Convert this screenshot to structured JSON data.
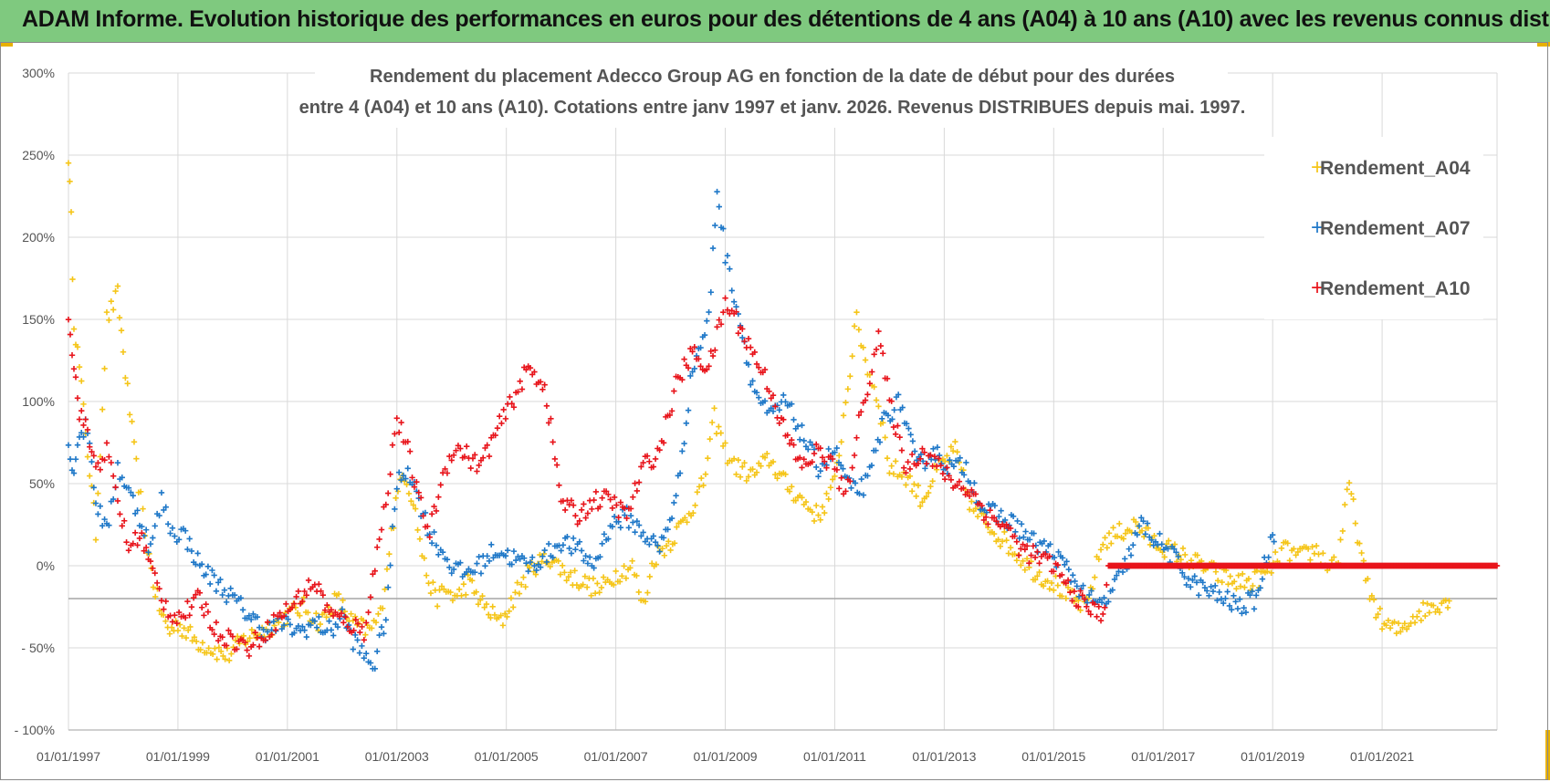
{
  "banner": {
    "title": "ADAM Informe. Evolution historique des performances en euros pour des détentions de 4 ans (A04) à 10 ans (A10) avec les revenus connus distribués"
  },
  "colors": {
    "banner_bg": "#7fc97f",
    "A04": "#f5c518",
    "A07": "#1f78c8",
    "A10": "#e8141b",
    "grid": "#d9d9d9",
    "ref_line": "#a6a6a6"
  },
  "chart_data": {
    "type": "scatter",
    "title": [
      "Rendement du placement Adecco Group AG en fonction de la date de début pour des durées",
      "entre 4 (A04) et 10 ans (A10).  Cotations entre janv 1997 et janv. 2026. Revenus DISTRIBUES depuis mai. 1997."
    ],
    "xlabel": "",
    "ylabel": "",
    "x_range": [
      1997.0,
      2023.1
    ],
    "ylim": [
      -100,
      300
    ],
    "x_tick_years": [
      1997,
      1999,
      2001,
      2003,
      2005,
      2007,
      2009,
      2011,
      2013,
      2015,
      2017,
      2019,
      2021
    ],
    "x_tick_labels": [
      "01/01/1997",
      "01/01/1999",
      "01/01/2001",
      "01/01/2003",
      "01/01/2005",
      "01/01/2007",
      "01/01/2009",
      "01/01/2011",
      "01/01/2013",
      "01/01/2015",
      "01/01/2017",
      "01/01/2019",
      "01/01/2021"
    ],
    "y_ticks": [
      300,
      250,
      200,
      150,
      100,
      50,
      0,
      -50,
      -100
    ],
    "y_tick_labels": [
      "300%",
      "250%",
      "200%",
      "150%",
      "100%",
      "50%",
      "0%",
      "- 50%",
      "- 100%"
    ],
    "reference_line": -20,
    "legend_position": "top-right",
    "series": [
      {
        "name": "Rendement_A04",
        "x": [
          1997.0,
          1997.05,
          1997.1,
          1997.2,
          1997.35,
          1997.5,
          1997.7,
          1997.9,
          1998.0,
          1998.2,
          1998.4,
          1998.55,
          1998.7,
          1998.85,
          1999.0,
          1999.3,
          1999.6,
          1999.9,
          2000.2,
          2000.5,
          2000.8,
          2001.0,
          2001.3,
          2001.6,
          2001.9,
          2002.2,
          2002.5,
          2002.7,
          2002.9,
          2003.1,
          2003.3,
          2003.5,
          2003.7,
          2003.9,
          2004.1,
          2004.3,
          2004.6,
          2004.9,
          2005.2,
          2005.5,
          2005.8,
          2006.1,
          2006.4,
          2006.7,
          2007.0,
          2007.3,
          2007.5,
          2007.7,
          2008.0,
          2008.3,
          2008.6,
          2008.8,
          2009.0,
          2009.2,
          2009.5,
          2009.8,
          2010.1,
          2010.4,
          2010.7,
          2011.0,
          2011.2,
          2011.4,
          2011.6,
          2011.8,
          2012.0,
          2012.3,
          2012.6,
          2012.9,
          2013.2,
          2013.5,
          2013.8,
          2014.1,
          2014.4,
          2014.7,
          2015.0,
          2015.3,
          2015.6,
          2015.9,
          2016.2,
          2016.5,
          2016.8,
          2017.1,
          2017.4,
          2017.7,
          2018.0,
          2018.3,
          2018.6,
          2018.9,
          2019.2,
          2019.5,
          2019.8,
          2020.0,
          2020.2,
          2020.4,
          2020.7,
          2021.0,
          2021.3,
          2021.6,
          2021.9,
          2022.2
        ],
        "values": [
          250,
          210,
          150,
          120,
          70,
          20,
          150,
          165,
          130,
          70,
          20,
          -10,
          -30,
          -40,
          -35,
          -45,
          -50,
          -55,
          -45,
          -40,
          -35,
          -30,
          -25,
          -35,
          -20,
          -35,
          -40,
          -30,
          20,
          60,
          40,
          0,
          -20,
          -15,
          -20,
          -10,
          -25,
          -35,
          -15,
          0,
          5,
          -5,
          -10,
          -15,
          -5,
          0,
          -25,
          5,
          15,
          30,
          50,
          90,
          70,
          60,
          55,
          65,
          50,
          40,
          30,
          50,
          100,
          150,
          120,
          100,
          60,
          55,
          40,
          60,
          70,
          35,
          25,
          15,
          5,
          -5,
          -10,
          -20,
          -25,
          15,
          20,
          25,
          15,
          10,
          5,
          0,
          -5,
          -10,
          -10,
          -5,
          10,
          5,
          10,
          0,
          5,
          50,
          -10,
          -35,
          -40,
          -30,
          -25,
          -20
        ]
      },
      {
        "name": "Rendement_A07",
        "x": [
          1997.0,
          1997.1,
          1997.2,
          1997.35,
          1997.5,
          1997.7,
          1997.9,
          1998.1,
          1998.3,
          1998.5,
          1998.7,
          1998.9,
          1999.1,
          1999.4,
          1999.7,
          2000.0,
          2000.3,
          2000.6,
          2000.9,
          2001.2,
          2001.5,
          2001.8,
          2002.0,
          2002.2,
          2002.4,
          2002.6,
          2002.8,
          2003.0,
          2003.2,
          2003.4,
          2003.6,
          2003.8,
          2004.0,
          2004.2,
          2004.5,
          2004.8,
          2005.1,
          2005.4,
          2005.7,
          2006.0,
          2006.3,
          2006.6,
          2006.9,
          2007.2,
          2007.5,
          2007.8,
          2008.1,
          2008.4,
          2008.7,
          2008.85,
          2009.0,
          2009.2,
          2009.5,
          2009.8,
          2010.1,
          2010.4,
          2010.7,
          2011.0,
          2011.3,
          2011.6,
          2011.9,
          2012.2,
          2012.5,
          2012.8,
          2013.1,
          2013.4,
          2013.7,
          2014.0,
          2014.3,
          2014.6,
          2014.9,
          2015.2,
          2015.5,
          2015.8,
          2016.0,
          2016.3,
          2016.6,
          2016.9,
          2017.2,
          2017.5,
          2017.8,
          2018.1,
          2018.4,
          2018.7,
          2019.0
        ],
        "values": [
          70,
          60,
          80,
          85,
          40,
          20,
          60,
          45,
          30,
          10,
          40,
          20,
          20,
          0,
          -10,
          -20,
          -30,
          -40,
          -35,
          -40,
          -35,
          -40,
          -30,
          -45,
          -55,
          -60,
          -30,
          50,
          60,
          40,
          20,
          10,
          0,
          -5,
          0,
          10,
          5,
          0,
          5,
          15,
          10,
          0,
          25,
          30,
          20,
          10,
          40,
          120,
          150,
          230,
          190,
          160,
          110,
          90,
          100,
          80,
          60,
          70,
          45,
          50,
          90,
          100,
          60,
          70,
          60,
          60,
          35,
          30,
          25,
          15,
          10,
          0,
          -15,
          -25,
          -20,
          0,
          25,
          15,
          5,
          -10,
          -15,
          -20,
          -25,
          -20,
          20
        ]
      },
      {
        "name": "Rendement_A10",
        "x": [
          1997.0,
          1997.1,
          1997.2,
          1997.35,
          1997.5,
          1997.7,
          1997.9,
          1998.1,
          1998.3,
          1998.5,
          1998.7,
          1998.9,
          1999.1,
          1999.4,
          1999.7,
          2000.0,
          2000.3,
          2000.6,
          2000.9,
          2001.2,
          2001.5,
          2001.8,
          2002.1,
          2002.4,
          2002.6,
          2002.8,
          2003.0,
          2003.2,
          2003.4,
          2003.6,
          2003.8,
          2004.0,
          2004.2,
          2004.5,
          2004.8,
          2005.1,
          2005.4,
          2005.7,
          2006.0,
          2006.3,
          2006.6,
          2006.9,
          2007.2,
          2007.5,
          2007.8,
          2008.1,
          2008.4,
          2008.7,
          2009.0,
          2009.2,
          2009.5,
          2009.8,
          2010.1,
          2010.4,
          2010.7,
          2011.0,
          2011.2,
          2011.4,
          2011.6,
          2011.8,
          2012.0,
          2012.3,
          2012.6,
          2012.9,
          2013.2,
          2013.5,
          2013.8,
          2014.1,
          2014.4,
          2014.7,
          2015.0,
          2015.3,
          2015.6,
          2015.9,
          2016.0,
          2023.1
        ],
        "values": [
          155,
          120,
          95,
          80,
          60,
          70,
          40,
          10,
          20,
          0,
          -20,
          -30,
          -30,
          -20,
          -40,
          -45,
          -50,
          -40,
          -30,
          -20,
          -10,
          -30,
          -35,
          -40,
          0,
          40,
          90,
          70,
          40,
          20,
          50,
          70,
          70,
          60,
          80,
          100,
          120,
          110,
          40,
          30,
          40,
          40,
          30,
          60,
          70,
          110,
          130,
          120,
          160,
          150,
          130,
          110,
          80,
          60,
          70,
          60,
          40,
          80,
          110,
          140,
          100,
          60,
          70,
          60,
          50,
          45,
          30,
          25,
          10,
          5,
          0,
          -15,
          -25,
          -30,
          0,
          0
        ]
      }
    ]
  }
}
